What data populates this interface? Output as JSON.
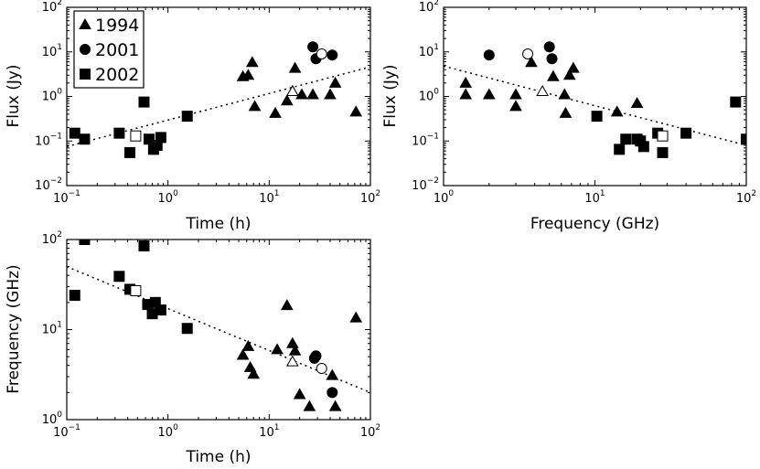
{
  "colors": {
    "marker": "#000000",
    "background": "#ffffff",
    "open_marker_fill": "#ffffff"
  },
  "legend": {
    "entries": [
      {
        "label": "1994",
        "marker": "triangle"
      },
      {
        "label": "2001",
        "marker": "circle"
      },
      {
        "label": "2002",
        "marker": "square"
      }
    ]
  },
  "chart_data": [
    {
      "id": "flux_vs_time",
      "type": "scatter",
      "xscale": "log",
      "yscale": "log",
      "xlabel": "Time (h)",
      "ylabel": "Flux (Jy)",
      "xlim": [
        0.1,
        100
      ],
      "ylim": [
        0.01,
        100
      ],
      "x_ticks": [
        {
          "base": "10",
          "exp": "−1"
        },
        {
          "base": "10",
          "exp": "0"
        },
        {
          "base": "10",
          "exp": "1"
        },
        {
          "base": "10",
          "exp": "2"
        }
      ],
      "y_ticks": [
        {
          "base": "10",
          "exp": "−2"
        },
        {
          "base": "10",
          "exp": "−1"
        },
        {
          "base": "10",
          "exp": "0"
        },
        {
          "base": "10",
          "exp": "1"
        },
        {
          "base": "10",
          "exp": "2"
        }
      ],
      "legend": "top-left",
      "fit_line": [
        [
          0.1,
          0.075
        ],
        [
          100,
          4.6
        ]
      ],
      "series": [
        {
          "name": "1994",
          "marker": "triangle",
          "filled": true,
          "points": [
            [
              5.5,
              2.8
            ],
            [
              6.2,
              3.0
            ],
            [
              6.8,
              5.8
            ],
            [
              7.2,
              0.6
            ],
            [
              11.5,
              0.42
            ],
            [
              15,
              0.8
            ],
            [
              17,
              1.3
            ],
            [
              18,
              4.3
            ],
            [
              21,
              1.1
            ],
            [
              27,
              1.1
            ],
            [
              40,
              1.1
            ],
            [
              45,
              2.0
            ],
            [
              72,
              0.45
            ]
          ]
        },
        {
          "name": "2001",
          "marker": "circle",
          "filled": true,
          "points": [
            [
              27,
              13
            ],
            [
              29,
              7.0
            ],
            [
              42,
              8.5
            ]
          ]
        },
        {
          "name": "2002",
          "marker": "square",
          "filled": true,
          "points": [
            [
              0.12,
              0.15
            ],
            [
              0.15,
              0.11
            ],
            [
              0.33,
              0.15
            ],
            [
              0.42,
              0.055
            ],
            [
              0.58,
              0.75
            ],
            [
              0.65,
              0.11
            ],
            [
              0.72,
              0.065
            ],
            [
              0.78,
              0.08
            ],
            [
              0.85,
              0.12
            ],
            [
              1.55,
              0.36
            ]
          ]
        },
        {
          "name": "1994 (open)",
          "marker": "triangle",
          "filled": false,
          "points": [
            [
              17,
              1.3
            ]
          ]
        },
        {
          "name": "2001 (open)",
          "marker": "circle",
          "filled": false,
          "points": [
            [
              33,
              9.0
            ]
          ]
        },
        {
          "name": "2002 (open)",
          "marker": "square",
          "filled": false,
          "points": [
            [
              0.48,
              0.13
            ]
          ]
        }
      ]
    },
    {
      "id": "flux_vs_frequency",
      "type": "scatter",
      "xscale": "log",
      "yscale": "log",
      "xlabel": "Frequency (GHz)",
      "ylabel": "Flux (Jy)",
      "xlim": [
        1,
        100
      ],
      "ylim": [
        0.01,
        100
      ],
      "x_ticks": [
        {
          "base": "10",
          "exp": "0"
        },
        {
          "base": "10",
          "exp": "1"
        },
        {
          "base": "10",
          "exp": "2"
        }
      ],
      "y_ticks": [
        {
          "base": "10",
          "exp": "−2"
        },
        {
          "base": "10",
          "exp": "−1"
        },
        {
          "base": "10",
          "exp": "0"
        },
        {
          "base": "10",
          "exp": "1"
        },
        {
          "base": "10",
          "exp": "2"
        }
      ],
      "legend": "none",
      "fit_line": [
        [
          1,
          4.8
        ],
        [
          100,
          0.08
        ]
      ],
      "series": [
        {
          "name": "1994",
          "marker": "triangle",
          "filled": true,
          "points": [
            [
              1.4,
              1.1
            ],
            [
              1.4,
              2.0
            ],
            [
              2.0,
              1.1
            ],
            [
              3.0,
              1.1
            ],
            [
              3.0,
              0.6
            ],
            [
              3.8,
              5.8
            ],
            [
              5.3,
              2.8
            ],
            [
              6.3,
              1.1
            ],
            [
              6.4,
              0.42
            ],
            [
              6.8,
              3.0
            ],
            [
              7.2,
              4.3
            ],
            [
              14,
              0.45
            ],
            [
              19,
              0.7
            ]
          ]
        },
        {
          "name": "2001",
          "marker": "circle",
          "filled": true,
          "points": [
            [
              2.0,
              8.5
            ],
            [
              5.0,
              13
            ],
            [
              5.2,
              7.0
            ]
          ]
        },
        {
          "name": "2002",
          "marker": "square",
          "filled": true,
          "points": [
            [
              10.3,
              0.36
            ],
            [
              14.5,
              0.065
            ],
            [
              16,
              0.11
            ],
            [
              19,
              0.11
            ],
            [
              20,
              0.1
            ],
            [
              21,
              0.075
            ],
            [
              26,
              0.15
            ],
            [
              28,
              0.055
            ],
            [
              40,
              0.15
            ],
            [
              85,
              0.75
            ],
            [
              100,
              0.11
            ]
          ]
        },
        {
          "name": "1994 (open)",
          "marker": "triangle",
          "filled": false,
          "points": [
            [
              4.5,
              1.3
            ]
          ]
        },
        {
          "name": "2001 (open)",
          "marker": "circle",
          "filled": false,
          "points": [
            [
              3.6,
              9.0
            ]
          ]
        },
        {
          "name": "2002 (open)",
          "marker": "square",
          "filled": false,
          "points": [
            [
              28,
              0.13
            ]
          ]
        }
      ]
    },
    {
      "id": "frequency_vs_time",
      "type": "scatter",
      "xscale": "log",
      "yscale": "log",
      "xlabel": "Time (h)",
      "ylabel": "Frequency (GHz)",
      "xlim": [
        0.1,
        100
      ],
      "ylim": [
        1,
        100
      ],
      "x_ticks": [
        {
          "base": "10",
          "exp": "−1"
        },
        {
          "base": "10",
          "exp": "0"
        },
        {
          "base": "10",
          "exp": "1"
        },
        {
          "base": "10",
          "exp": "2"
        }
      ],
      "y_ticks": [
        {
          "base": "10",
          "exp": "0"
        },
        {
          "base": "10",
          "exp": "1"
        },
        {
          "base": "10",
          "exp": "2"
        }
      ],
      "legend": "none",
      "fit_line": [
        [
          0.1,
          50
        ],
        [
          100,
          2.0
        ]
      ],
      "series": [
        {
          "name": "1994",
          "marker": "triangle",
          "filled": true,
          "points": [
            [
              5.5,
              5.2
            ],
            [
              6.2,
              6.5
            ],
            [
              6.5,
              3.8
            ],
            [
              7.0,
              3.2
            ],
            [
              12,
              6.0
            ],
            [
              15,
              18.5
            ],
            [
              17,
              7.0
            ],
            [
              18,
              5.8
            ],
            [
              20,
              1.9
            ],
            [
              25,
              1.4
            ],
            [
              42,
              3.1
            ],
            [
              45,
              1.4
            ],
            [
              72,
              13.5
            ]
          ]
        },
        {
          "name": "2001",
          "marker": "circle",
          "filled": true,
          "points": [
            [
              28,
              4.8
            ],
            [
              29,
              5.1
            ],
            [
              42,
              2.0
            ]
          ]
        },
        {
          "name": "2002",
          "marker": "square",
          "filled": true,
          "points": [
            [
              0.12,
              24
            ],
            [
              0.15,
              100
            ],
            [
              0.33,
              39
            ],
            [
              0.42,
              28
            ],
            [
              0.58,
              85
            ],
            [
              0.63,
              19
            ],
            [
              0.7,
              15
            ],
            [
              0.75,
              20
            ],
            [
              0.85,
              16.5
            ],
            [
              1.55,
              10.3
            ]
          ]
        },
        {
          "name": "1994 (open)",
          "marker": "triangle",
          "filled": false,
          "points": [
            [
              17,
              4.4
            ]
          ]
        },
        {
          "name": "2001 (open)",
          "marker": "circle",
          "filled": false,
          "points": [
            [
              33,
              3.7
            ]
          ]
        },
        {
          "name": "2002 (open)",
          "marker": "square",
          "filled": false,
          "points": [
            [
              0.48,
              27
            ]
          ]
        }
      ]
    }
  ]
}
